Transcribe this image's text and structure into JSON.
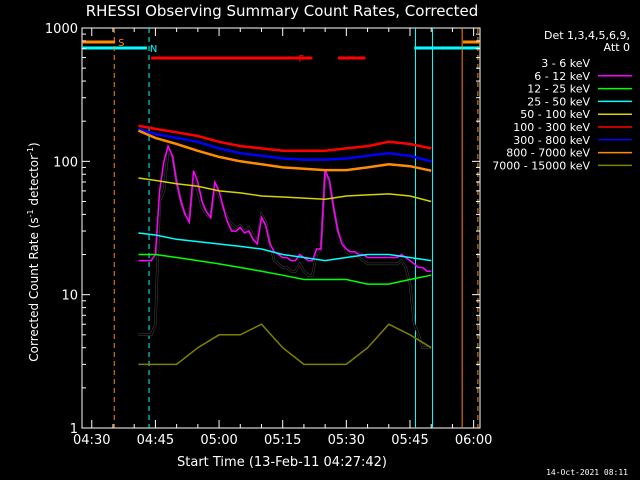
{
  "chart_data": {
    "type": "line",
    "title": "RHESSI Observing Summary Count Rates, Corrected",
    "xlabel": "Start Time (13-Feb-11 04:27:42)",
    "ylabel_main": "Corrected Count Rate (s",
    "ylabel_sup1": "-1",
    "ylabel_mid": " detector",
    "ylabel_sup2": "-1",
    "ylabel_end": ")",
    "yscale": "log",
    "ylim": [
      1,
      1000
    ],
    "xlim_min": [
      27.7,
      121.5
    ],
    "x_ticks": [
      {
        "t": 30,
        "label": "04:30"
      },
      {
        "t": 45,
        "label": "04:45"
      },
      {
        "t": 60,
        "label": "05:00"
      },
      {
        "t": 75,
        "label": "05:15"
      },
      {
        "t": 90,
        "label": "05:30"
      },
      {
        "t": 105,
        "label": "05:45"
      },
      {
        "t": 120,
        "label": "06:00"
      }
    ],
    "y_ticks": [
      {
        "v": 1,
        "label": "1"
      },
      {
        "v": 10,
        "label": "10"
      },
      {
        "v": 100,
        "label": "100"
      },
      {
        "v": 1000,
        "label": "1000"
      }
    ],
    "legend_header": [
      "Det 1,3,4,5,6,9,",
      "Att 0"
    ],
    "series": [
      {
        "name": "3 - 6 keV",
        "color": "#000000",
        "t": [
          41,
          43,
          44,
          45,
          46,
          47,
          48,
          49,
          50,
          51,
          52,
          53,
          54,
          55,
          56,
          57,
          58,
          59,
          60,
          61,
          62,
          63,
          64,
          65,
          66,
          67,
          68,
          69,
          70,
          71,
          72,
          73,
          74,
          75,
          76,
          77,
          78,
          79,
          80,
          81,
          82,
          83,
          84,
          85,
          86,
          87,
          88,
          89,
          90,
          91,
          92,
          93,
          94,
          95,
          96,
          97,
          98,
          99,
          100,
          101,
          102,
          103,
          104,
          105,
          106,
          107,
          108,
          109,
          110
        ],
        "v": [
          5,
          5,
          5,
          6,
          50,
          60,
          120,
          110,
          70,
          50,
          40,
          38,
          75,
          60,
          45,
          40,
          38,
          65,
          55,
          45,
          37,
          34,
          32,
          33,
          30,
          32,
          28,
          25,
          40,
          35,
          24,
          18,
          17,
          16,
          16,
          15,
          15,
          17,
          15,
          14,
          14,
          20,
          22,
          85,
          70,
          45,
          30,
          25,
          21,
          20,
          20,
          19,
          18,
          17,
          17,
          17,
          17,
          17,
          17,
          17,
          17,
          18,
          16,
          12,
          6,
          5,
          4,
          4,
          4
        ]
      },
      {
        "name": "6 - 12 keV",
        "color": "#ff00ff",
        "t": [
          41,
          43,
          44,
          45,
          46,
          47,
          48,
          49,
          50,
          51,
          52,
          53,
          54,
          55,
          56,
          57,
          58,
          59,
          60,
          61,
          62,
          63,
          64,
          65,
          66,
          67,
          68,
          69,
          70,
          71,
          72,
          73,
          74,
          75,
          76,
          77,
          78,
          79,
          80,
          81,
          82,
          83,
          84,
          85,
          86,
          87,
          88,
          89,
          90,
          91,
          92,
          93,
          94,
          95,
          96,
          97,
          98,
          99,
          100,
          101,
          102,
          103,
          104,
          105,
          106,
          107,
          108,
          109,
          110
        ],
        "v": [
          18,
          18,
          18,
          20,
          60,
          100,
          130,
          110,
          70,
          50,
          40,
          35,
          85,
          70,
          50,
          42,
          38,
          70,
          60,
          45,
          35,
          30,
          30,
          32,
          29,
          30,
          26,
          24,
          38,
          33,
          24,
          21,
          20,
          19,
          19,
          18,
          18,
          20,
          19,
          18,
          18,
          22,
          22,
          85,
          72,
          45,
          30,
          24,
          22,
          21,
          21,
          20,
          20,
          19,
          19,
          19,
          19,
          19,
          19,
          19,
          19,
          20,
          19,
          18,
          17,
          16,
          16,
          15,
          15
        ]
      },
      {
        "name": "12 - 25 keV",
        "color": "#00ff00",
        "t": [
          41,
          45,
          50,
          55,
          60,
          65,
          70,
          75,
          80,
          85,
          90,
          95,
          100,
          105,
          110
        ],
        "v": [
          20,
          20,
          19,
          18,
          17,
          16,
          15,
          14,
          13,
          13,
          13,
          12,
          12,
          13,
          14
        ]
      },
      {
        "name": "25 - 50 keV",
        "color": "#00ffff",
        "t": [
          41,
          45,
          50,
          55,
          60,
          65,
          70,
          75,
          80,
          85,
          90,
          95,
          100,
          105,
          110
        ],
        "v": [
          29,
          28,
          26,
          25,
          24,
          23,
          22,
          20,
          19,
          18,
          19,
          20,
          20,
          19,
          18
        ]
      },
      {
        "name": "50 - 100 keV",
        "color": "#d4d400",
        "t": [
          41,
          45,
          50,
          55,
          60,
          65,
          70,
          75,
          80,
          85,
          90,
          95,
          100,
          105,
          110
        ],
        "v": [
          75,
          72,
          68,
          65,
          60,
          58,
          55,
          54,
          53,
          52,
          55,
          56,
          57,
          55,
          50
        ]
      },
      {
        "name": "100 - 300 keV",
        "color": "#ff0000",
        "t": [
          41,
          45,
          50,
          55,
          60,
          65,
          70,
          75,
          80,
          85,
          90,
          95,
          100,
          105,
          110
        ],
        "v": [
          185,
          175,
          165,
          155,
          140,
          130,
          125,
          120,
          120,
          120,
          125,
          130,
          140,
          135,
          125
        ]
      },
      {
        "name": "300 - 800 keV",
        "color": "#0000ff",
        "t": [
          41,
          45,
          50,
          55,
          60,
          65,
          70,
          75,
          80,
          85,
          90,
          95,
          100,
          105,
          110
        ],
        "v": [
          175,
          160,
          150,
          140,
          125,
          115,
          110,
          105,
          103,
          103,
          105,
          110,
          115,
          110,
          100
        ]
      },
      {
        "name": "800 - 7000 keV",
        "color": "#ff8c00",
        "t": [
          41,
          45,
          50,
          55,
          60,
          65,
          70,
          75,
          80,
          85,
          90,
          95,
          100,
          105,
          110
        ],
        "v": [
          170,
          150,
          135,
          120,
          108,
          100,
          95,
          90,
          88,
          86,
          86,
          90,
          95,
          92,
          85
        ]
      },
      {
        "name": "7000 - 15000 keV",
        "color": "#808000",
        "t": [
          41,
          45,
          50,
          55,
          60,
          65,
          70,
          75,
          80,
          85,
          90,
          95,
          100,
          105,
          110
        ],
        "v": [
          3,
          3,
          3,
          4,
          5,
          5,
          6,
          4,
          3,
          3,
          3,
          4,
          6,
          5,
          4
        ]
      }
    ],
    "flags": [
      {
        "label": "S",
        "color": "#ff8c00",
        "ranges": [
          [
            27.7,
            35.5
          ],
          [
            117.5,
            121.5
          ]
        ]
      },
      {
        "label": "N",
        "color": "#00ffff",
        "ranges": [
          [
            27.7,
            43.0
          ],
          [
            106.0,
            121.5
          ]
        ]
      },
      {
        "label": "F",
        "color": "#ff0000",
        "ranges": [
          [
            44.0,
            82.0
          ],
          [
            88.0,
            94.5
          ]
        ]
      }
    ],
    "vlines": [
      {
        "t": 35.3,
        "color": "#ff8c00",
        "dash": true
      },
      {
        "t": 43.5,
        "color": "#00ffff",
        "dash": true
      },
      {
        "t": 106.3,
        "color": "#00ffff",
        "dash": false
      },
      {
        "t": 110.3,
        "color": "#00ffff",
        "dash": false
      },
      {
        "t": 117.3,
        "color": "#ff8c00",
        "dash": false
      },
      {
        "t": 121.0,
        "color": "#ff8c00",
        "dash": true
      }
    ],
    "footer": "14-Oct-2021 08:11"
  }
}
